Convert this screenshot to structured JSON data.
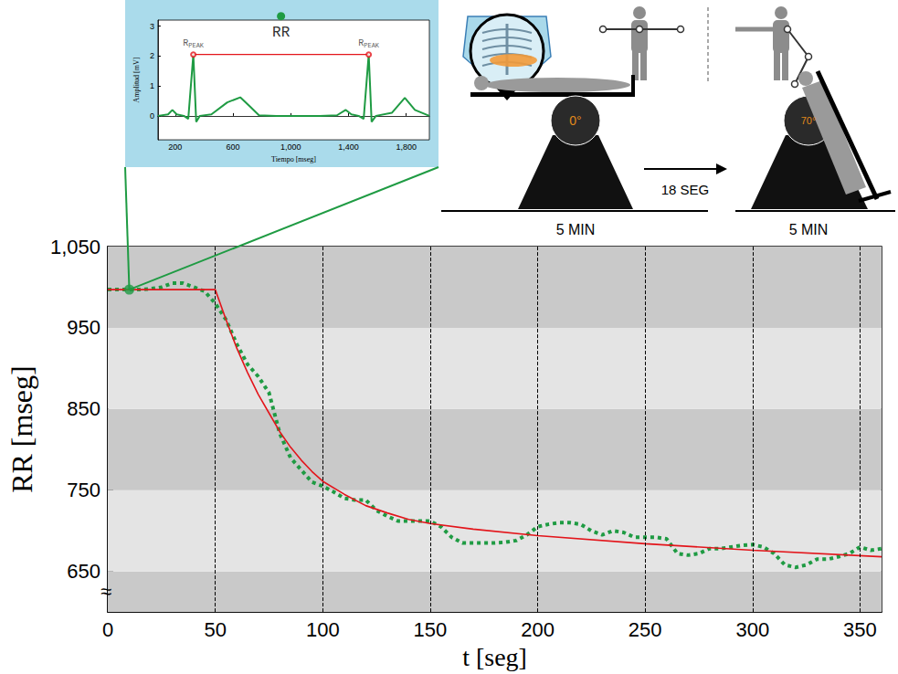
{
  "chart_data": [
    {
      "type": "line",
      "x_label": "t [seg]",
      "y_label": "RR [mseg]",
      "xlim": [
        0,
        360
      ],
      "xticks": [
        0,
        50,
        100,
        150,
        200,
        250,
        300,
        350
      ],
      "ylim": [
        600,
        1050
      ],
      "yticks": [
        650,
        750,
        850,
        950,
        1050
      ],
      "axis_break": "≈",
      "grid": true,
      "series": [
        {
          "color": "#1f9b43",
          "line_style": "dotted",
          "x": [
            0,
            5,
            10,
            15,
            20,
            25,
            30,
            35,
            40,
            45,
            50,
            55,
            60,
            65,
            70,
            75,
            80,
            85,
            90,
            95,
            100,
            105,
            110,
            115,
            120,
            125,
            130,
            135,
            140,
            145,
            150,
            155,
            160,
            165,
            170,
            175,
            180,
            185,
            190,
            195,
            200,
            205,
            210,
            215,
            220,
            225,
            230,
            235,
            240,
            245,
            250,
            255,
            260,
            265,
            270,
            275,
            280,
            285,
            290,
            295,
            300,
            305,
            310,
            315,
            320,
            325,
            330,
            335,
            340,
            345,
            350,
            355,
            360
          ],
          "values": [
            997,
            997,
            997,
            997,
            998,
            1000,
            1005,
            1005,
            1000,
            995,
            980,
            960,
            930,
            905,
            890,
            870,
            820,
            790,
            775,
            760,
            755,
            748,
            740,
            738,
            738,
            725,
            718,
            712,
            712,
            712,
            712,
            705,
            692,
            685,
            685,
            685,
            685,
            686,
            688,
            695,
            705,
            708,
            710,
            710,
            708,
            700,
            695,
            700,
            698,
            692,
            692,
            692,
            690,
            672,
            670,
            672,
            678,
            678,
            680,
            682,
            683,
            680,
            672,
            658,
            655,
            658,
            665,
            665,
            668,
            672,
            680,
            676,
            678
          ]
        },
        {
          "color": "#e3151b",
          "line_style": "solid",
          "x": [
            0,
            50,
            55,
            60,
            65,
            70,
            75,
            80,
            85,
            90,
            95,
            100,
            110,
            120,
            130,
            140,
            150,
            170,
            200,
            250,
            300,
            360
          ],
          "values": [
            997,
            997,
            960,
            925,
            895,
            868,
            845,
            822,
            803,
            787,
            773,
            761,
            745,
            731,
            722,
            714,
            709,
            702,
            694,
            684,
            676,
            668
          ]
        }
      ],
      "marked_point": {
        "x": 10,
        "y": 997,
        "color": "#1f9b43"
      }
    },
    {
      "type": "line",
      "x_label": "Tiempo [mseg]",
      "y_label": "Amplitud [mV]",
      "xlim": [
        80,
        1960
      ],
      "xticks": [
        200,
        600,
        1000,
        1400,
        1800
      ],
      "ylim": [
        -0.8,
        3.2
      ],
      "yticks": [
        0,
        1,
        2,
        3
      ],
      "color": "#1f9b43",
      "x": [
        80,
        150,
        180,
        210,
        260,
        290,
        325,
        345,
        370,
        450,
        560,
        650,
        720,
        780,
        900,
        1200,
        1320,
        1380,
        1420,
        1470,
        1505,
        1540,
        1560,
        1590,
        1700,
        1790,
        1860,
        1960
      ],
      "values": [
        0,
        0.05,
        0.2,
        0.05,
        0,
        -0.1,
        2.05,
        -0.2,
        0,
        0.05,
        0.45,
        0.62,
        0.3,
        0.02,
        0,
        0,
        0.02,
        0.2,
        0.05,
        0,
        -0.1,
        2.05,
        -0.2,
        0,
        0.1,
        0.6,
        0.2,
        0
      ],
      "peaks": {
        "x": [
          325,
          1540
        ],
        "values": [
          2.05,
          2.05
        ],
        "color": "#e3151b",
        "label": {
          "main": "R",
          "sub": "PEAK"
        }
      },
      "interval_label": "RR"
    }
  ],
  "diagram": {
    "tilt_start": "0°",
    "tilt_end": "70°",
    "phase1_duration": "5 MIN",
    "transition": "18 SEG",
    "phase2_duration": "5 MIN"
  }
}
